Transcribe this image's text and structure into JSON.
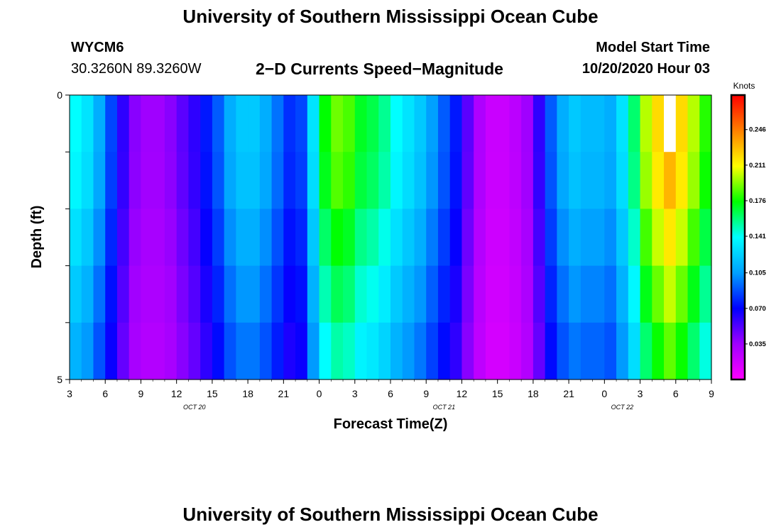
{
  "header": {
    "title": "University of Southern Mississippi Ocean Cube",
    "station": "WYCM6",
    "coordinates": "30.3260N 89.3260W",
    "plot_title": "2−D Currents Speed−Magnitude",
    "start_label": "Model Start Time",
    "start_value": "10/20/2020 Hour 03"
  },
  "footer": {
    "title": "University of Southern Mississippi Ocean Cube"
  },
  "chart_data": {
    "type": "heatmap",
    "xlabel": "Forecast Time(Z)",
    "ylabel": "Depth (ft)",
    "x_ticks": [
      "3",
      "6",
      "9",
      "12",
      "15",
      "18",
      "21",
      "0",
      "3",
      "6",
      "9",
      "12",
      "15",
      "18",
      "21",
      "0",
      "3",
      "6",
      "9"
    ],
    "date_labels": [
      {
        "text": "OCT 20",
        "hour_index": 10.5
      },
      {
        "text": "OCT 21",
        "hour_index": 31.5
      },
      {
        "text": "OCT 22",
        "hour_index": 46.5
      }
    ],
    "y_ticks": [
      "0",
      "5"
    ],
    "y_range": [
      0,
      5
    ],
    "hours": 54,
    "depth_layers": 5,
    "colorbar": {
      "title": "Knots",
      "range": [
        0.0,
        0.28
      ],
      "ticks": [
        "0.246",
        "0.211",
        "0.176",
        "0.141",
        "0.105",
        "0.070",
        "0.035"
      ],
      "tick_values": [
        0.246,
        0.211,
        0.176,
        0.141,
        0.105,
        0.07,
        0.035
      ],
      "colors": [
        "#ff00ff",
        "#a000ff",
        "#0000ff",
        "#00a0ff",
        "#00ffff",
        "#00ff00",
        "#ffff00",
        "#ff8000",
        "#ff0000"
      ]
    },
    "profile": [
      0.14,
      0.13,
      0.11,
      0.085,
      0.06,
      0.04,
      0.035,
      0.035,
      0.04,
      0.05,
      0.06,
      0.075,
      0.09,
      0.11,
      0.12,
      0.12,
      0.11,
      0.095,
      0.08,
      0.085,
      0.13,
      0.175,
      0.19,
      0.185,
      0.17,
      0.165,
      0.155,
      0.14,
      0.13,
      0.12,
      0.105,
      0.09,
      0.075,
      0.05,
      0.03,
      0.02,
      0.02,
      0.025,
      0.035,
      0.06,
      0.09,
      0.11,
      0.12,
      0.115,
      0.115,
      0.11,
      0.13,
      0.16,
      0.2,
      0.22,
      0.235,
      0.22,
      0.2,
      0.18
    ],
    "depth_factors": [
      1.0,
      0.98,
      0.92,
      0.86,
      0.8
    ],
    "missing_cells": [
      {
        "hour": 50,
        "layer": 0
      }
    ]
  }
}
